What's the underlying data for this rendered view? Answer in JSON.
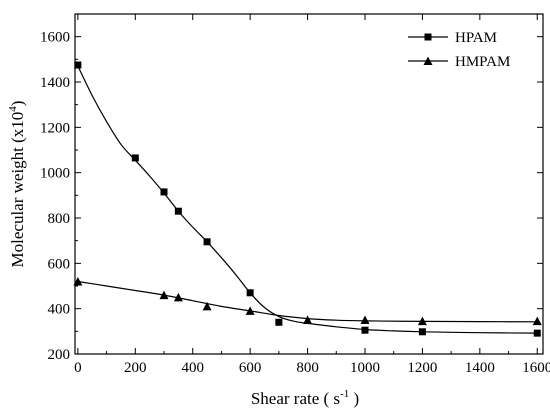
{
  "chart_data": {
    "type": "line",
    "xlabel": "Shear rate ( s",
    "xlabel_sup": "-1",
    "xlabel_end": " )",
    "ylabel": "Molecular weight  (x10",
    "ylabel_sup": "4",
    "ylabel_end": ")",
    "xlim": [
      -10,
      1620
    ],
    "ylim": [
      200,
      1700
    ],
    "xticks": [
      0,
      200,
      400,
      600,
      800,
      1000,
      1200,
      1400,
      1600
    ],
    "yticks": [
      200,
      400,
      600,
      800,
      1000,
      1200,
      1400,
      1600
    ],
    "xtick_labels": [
      "0",
      "200",
      "400",
      "600",
      "800",
      "1000",
      "1200",
      "1400",
      "1600"
    ],
    "ytick_labels": [
      "200",
      "400",
      "600",
      "800",
      "1000",
      "1200",
      "1400",
      "1600"
    ],
    "legend_position": "top-right",
    "series": [
      {
        "name": "HPAM",
        "marker": "square",
        "x": [
          0,
          200,
          300,
          350,
          450,
          600,
          700,
          1000,
          1200,
          1600
        ],
        "y": [
          1475,
          1065,
          915,
          830,
          695,
          470,
          340,
          305,
          298,
          292
        ]
      },
      {
        "name": "HMPAM",
        "marker": "triangle",
        "x": [
          0,
          300,
          350,
          450,
          600,
          800,
          1000,
          1200,
          1600
        ],
        "y": [
          520,
          460,
          450,
          410,
          390,
          350,
          350,
          345,
          345
        ]
      }
    ],
    "fit_curves": [
      {
        "series": "HPAM",
        "x": [
          0,
          50,
          100,
          150,
          200,
          250,
          300,
          350,
          400,
          450,
          500,
          550,
          600,
          650,
          700,
          750,
          800,
          900,
          1000,
          1100,
          1200,
          1400,
          1600
        ],
        "y": [
          1470,
          1340,
          1225,
          1125,
          1055,
          985,
          910,
          830,
          760,
          695,
          625,
          550,
          470,
          405,
          365,
          345,
          335,
          320,
          308,
          302,
          298,
          294,
          292
        ]
      },
      {
        "series": "HMPAM",
        "x": [
          0,
          100,
          200,
          300,
          400,
          500,
          600,
          700,
          800,
          900,
          1000,
          1200,
          1400,
          1600
        ],
        "y": [
          520,
          500,
          480,
          460,
          435,
          410,
          390,
          370,
          356,
          349,
          346,
          344,
          343,
          342
        ]
      }
    ]
  }
}
